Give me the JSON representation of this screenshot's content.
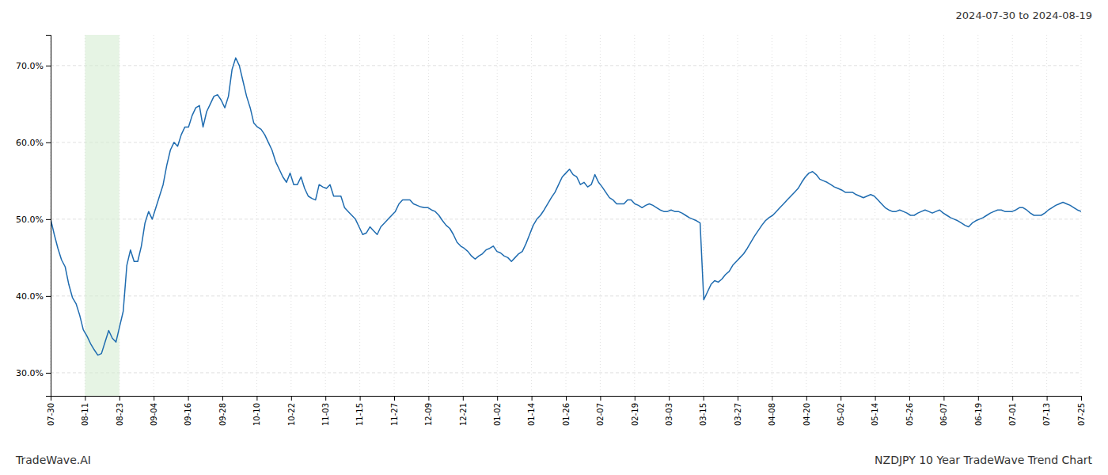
{
  "chart_data": {
    "type": "line",
    "title": "2024-07-30 to 2024-08-19",
    "annotations": [
      "TradeWave.AI",
      "NZDJPY 10 Year TradeWave Trend Chart"
    ],
    "color": "#1f6cb0",
    "grid": true,
    "highlight": {
      "range": [
        9.466666666666667,
        18.933333333333334
      ],
      "color": "#d6ecd2"
    },
    "xlim": [
      0,
      284
    ],
    "xticks": [
      {
        "value": 0,
        "label": "07-30"
      },
      {
        "value": 9.466666666666667,
        "label": "08-11"
      },
      {
        "value": 18.933333333333334,
        "label": "08-23"
      },
      {
        "value": 28.4,
        "label": "09-04"
      },
      {
        "value": 37.86666666666667,
        "label": "09-16"
      },
      {
        "value": 47.333333333333336,
        "label": "09-28"
      },
      {
        "value": 56.8,
        "label": "10-10"
      },
      {
        "value": 66.26666666666667,
        "label": "10-22"
      },
      {
        "value": 75.73333333333333,
        "label": "11-03"
      },
      {
        "value": 85.2,
        "label": "11-15"
      },
      {
        "value": 94.66666666666667,
        "label": "11-27"
      },
      {
        "value": 104.13333333333334,
        "label": "12-09"
      },
      {
        "value": 113.6,
        "label": "12-21"
      },
      {
        "value": 123.06666666666666,
        "label": "01-02"
      },
      {
        "value": 132.53333333333333,
        "label": "01-14"
      },
      {
        "value": 142,
        "label": "01-26"
      },
      {
        "value": 151.46666666666667,
        "label": "02-07"
      },
      {
        "value": 160.93333333333334,
        "label": "02-19"
      },
      {
        "value": 170.4,
        "label": "03-03"
      },
      {
        "value": 179.86666666666667,
        "label": "03-15"
      },
      {
        "value": 189.33333333333334,
        "label": "03-27"
      },
      {
        "value": 198.8,
        "label": "04-08"
      },
      {
        "value": 208.26666666666668,
        "label": "04-20"
      },
      {
        "value": 217.73333333333332,
        "label": "05-02"
      },
      {
        "value": 227.2,
        "label": "05-14"
      },
      {
        "value": 236.66666666666666,
        "label": "05-26"
      },
      {
        "value": 246.13333333333333,
        "label": "06-07"
      },
      {
        "value": 255.6,
        "label": "06-19"
      },
      {
        "value": 265.06666666666666,
        "label": "07-01"
      },
      {
        "value": 274.53333333333336,
        "label": "07-13"
      },
      {
        "value": 284,
        "label": "07-25"
      }
    ],
    "ylim": [
      0.27,
      0.74
    ],
    "yticks": [
      {
        "value": 0.3,
        "label": "30.0%"
      },
      {
        "value": 0.4,
        "label": "40.0%"
      },
      {
        "value": 0.5,
        "label": "50.0%"
      },
      {
        "value": 0.6,
        "label": "60.0%"
      },
      {
        "value": 0.7,
        "label": "70.0%"
      }
    ],
    "values": [
      0.5,
      0.48,
      0.462,
      0.447,
      0.438,
      0.415,
      0.398,
      0.39,
      0.375,
      0.356,
      0.348,
      0.338,
      0.33,
      0.323,
      0.325,
      0.34,
      0.355,
      0.345,
      0.34,
      0.36,
      0.38,
      0.44,
      0.46,
      0.445,
      0.445,
      0.465,
      0.495,
      0.51,
      0.5,
      0.515,
      0.53,
      0.545,
      0.57,
      0.59,
      0.6,
      0.595,
      0.61,
      0.62,
      0.62,
      0.635,
      0.645,
      0.648,
      0.62,
      0.64,
      0.65,
      0.66,
      0.662,
      0.655,
      0.645,
      0.66,
      0.695,
      0.71,
      0.7,
      0.68,
      0.66,
      0.645,
      0.625,
      0.62,
      0.617,
      0.61,
      0.6,
      0.59,
      0.575,
      0.565,
      0.555,
      0.548,
      0.56,
      0.545,
      0.545,
      0.555,
      0.54,
      0.53,
      0.527,
      0.525,
      0.545,
      0.542,
      0.54,
      0.545,
      0.53,
      0.53,
      0.53,
      0.515,
      0.51,
      0.505,
      0.5,
      0.49,
      0.48,
      0.482,
      0.49,
      0.485,
      0.48,
      0.49,
      0.495,
      0.5,
      0.505,
      0.51,
      0.52,
      0.525,
      0.525,
      0.525,
      0.52,
      0.518,
      0.516,
      0.515,
      0.515,
      0.512,
      0.51,
      0.505,
      0.498,
      0.492,
      0.488,
      0.48,
      0.47,
      0.465,
      0.462,
      0.458,
      0.452,
      0.448,
      0.452,
      0.455,
      0.46,
      0.462,
      0.465,
      0.458,
      0.456,
      0.452,
      0.45,
      0.445,
      0.45,
      0.455,
      0.458,
      0.468,
      0.48,
      0.492,
      0.5,
      0.505,
      0.512,
      0.52,
      0.528,
      0.535,
      0.545,
      0.555,
      0.56,
      0.565,
      0.558,
      0.555,
      0.545,
      0.548,
      0.542,
      0.545,
      0.558,
      0.548,
      0.542,
      0.535,
      0.528,
      0.525,
      0.52,
      0.52,
      0.52,
      0.525,
      0.525,
      0.52,
      0.518,
      0.515,
      0.518,
      0.52,
      0.518,
      0.515,
      0.512,
      0.51,
      0.51,
      0.512,
      0.51,
      0.51,
      0.508,
      0.505,
      0.502,
      0.5,
      0.498,
      0.495,
      0.395,
      0.405,
      0.415,
      0.42,
      0.418,
      0.422,
      0.428,
      0.432,
      0.44,
      0.445,
      0.45,
      0.455,
      0.462,
      0.47,
      0.478,
      0.485,
      0.492,
      0.498,
      0.502,
      0.505,
      0.51,
      0.515,
      0.52,
      0.525,
      0.53,
      0.535,
      0.54,
      0.548,
      0.555,
      0.56,
      0.562,
      0.558,
      0.552,
      0.55,
      0.548,
      0.545,
      0.542,
      0.54,
      0.538,
      0.535,
      0.535,
      0.535,
      0.532,
      0.53,
      0.528,
      0.53,
      0.532,
      0.53,
      0.525,
      0.52,
      0.515,
      0.512,
      0.51,
      0.51,
      0.512,
      0.51,
      0.508,
      0.505,
      0.505,
      0.508,
      0.51,
      0.512,
      0.51,
      0.508,
      0.51,
      0.512,
      0.508,
      0.505,
      0.502,
      0.5,
      0.498,
      0.495,
      0.492,
      0.49,
      0.495,
      0.498,
      0.5,
      0.502,
      0.505,
      0.508,
      0.51,
      0.512,
      0.512,
      0.51,
      0.51,
      0.51,
      0.512,
      0.515,
      0.515,
      0.512,
      0.508,
      0.505,
      0.505,
      0.505,
      0.508,
      0.512,
      0.515,
      0.518,
      0.52,
      0.522,
      0.52,
      0.518,
      0.515,
      0.512,
      0.51
    ]
  }
}
